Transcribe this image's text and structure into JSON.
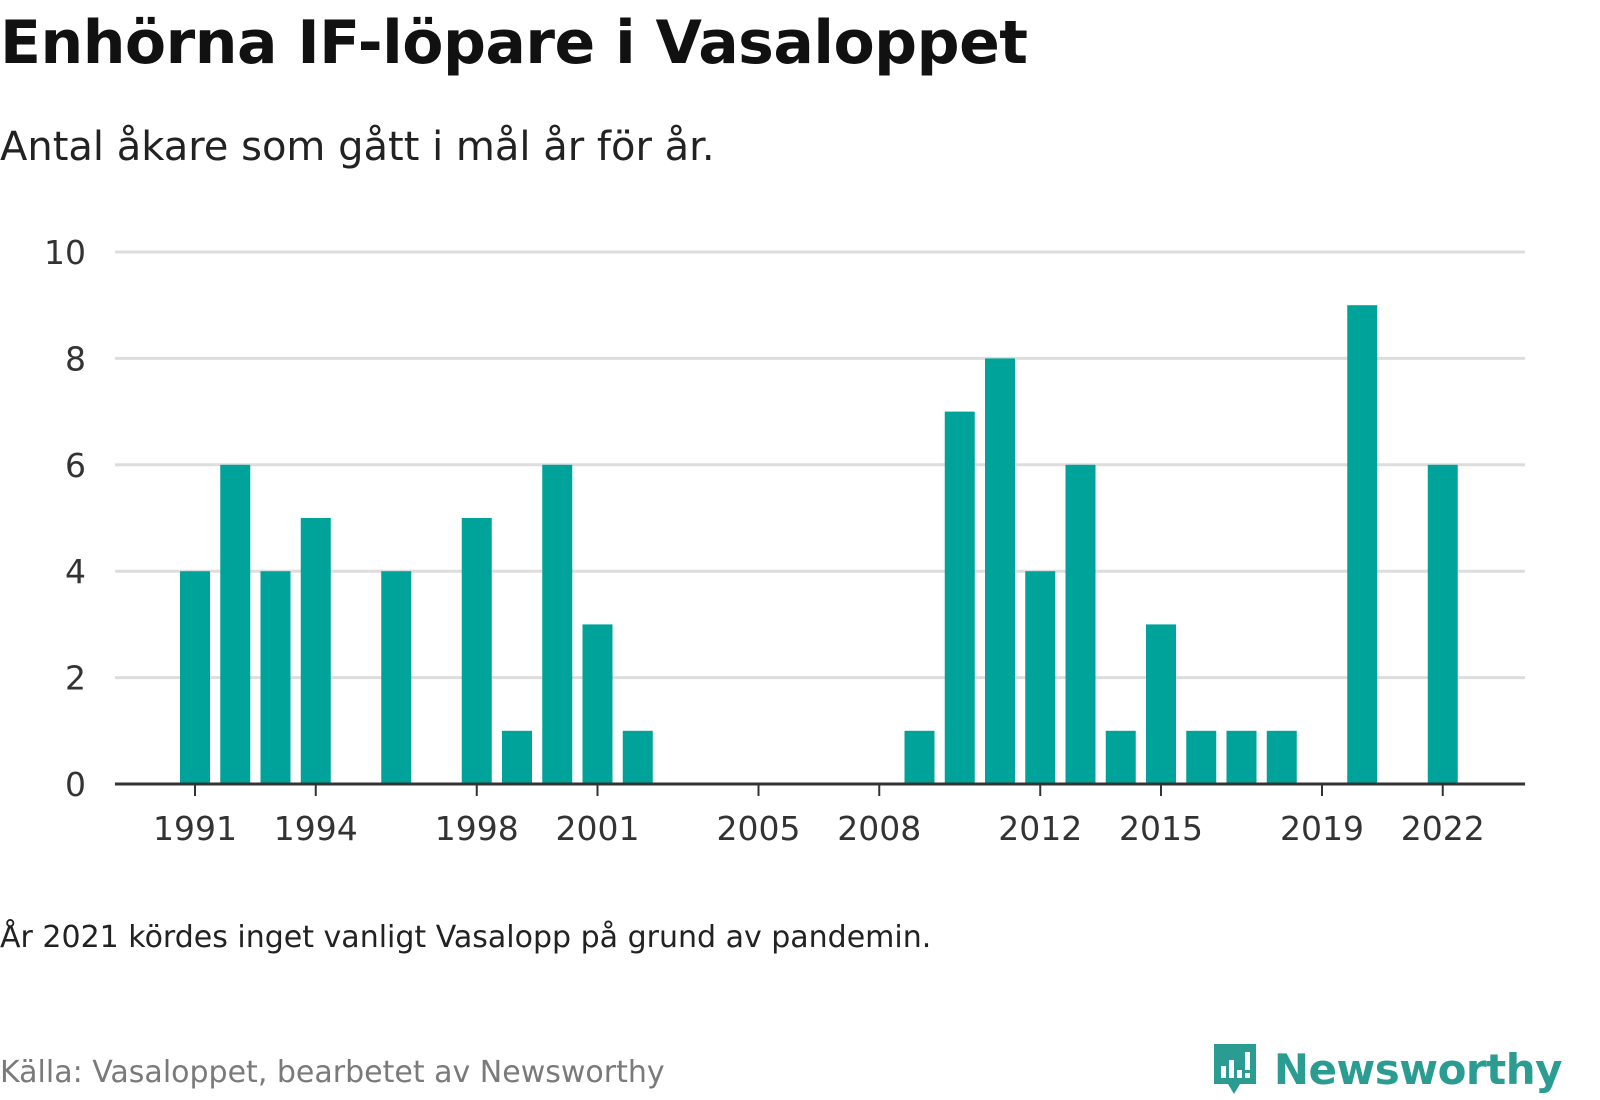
{
  "title": "Enhörna IF-löpare i Vasaloppet",
  "subtitle": "Antal åkare som gått i mål år för år.",
  "note": "År 2021 kördes inget vanligt Vasalopp på grund av pandemin.",
  "source": "Källa: Vasaloppet, bearbetet av Newsworthy",
  "brand": {
    "name": "Newsworthy",
    "icon": "newsworthy-logo-icon"
  },
  "colors": {
    "bar": "#00a39a",
    "grid": "#dddddd",
    "axis": "#333333",
    "brand": "#2a9c92"
  },
  "chart_data": {
    "type": "bar",
    "x": [
      1991,
      1992,
      1993,
      1994,
      1995,
      1996,
      1997,
      1998,
      1999,
      2000,
      2001,
      2002,
      2003,
      2004,
      2005,
      2006,
      2007,
      2008,
      2009,
      2010,
      2011,
      2012,
      2013,
      2014,
      2015,
      2016,
      2017,
      2018,
      2019,
      2020,
      2021,
      2022
    ],
    "values": [
      4,
      6,
      4,
      5,
      0,
      4,
      0,
      5,
      1,
      6,
      3,
      1,
      0,
      0,
      0,
      0,
      0,
      0,
      1,
      7,
      8,
      4,
      6,
      1,
      3,
      1,
      1,
      1,
      0,
      9,
      0,
      6
    ],
    "x_tick_labels": [
      "1991",
      "1994",
      "1998",
      "2001",
      "2005",
      "2008",
      "2012",
      "2015",
      "2019",
      "2022"
    ],
    "y_ticks": [
      0,
      2,
      4,
      6,
      8,
      10
    ],
    "ylim": [
      0,
      10
    ],
    "xlabel": "",
    "ylabel": "",
    "grid": true,
    "legend": "none"
  }
}
